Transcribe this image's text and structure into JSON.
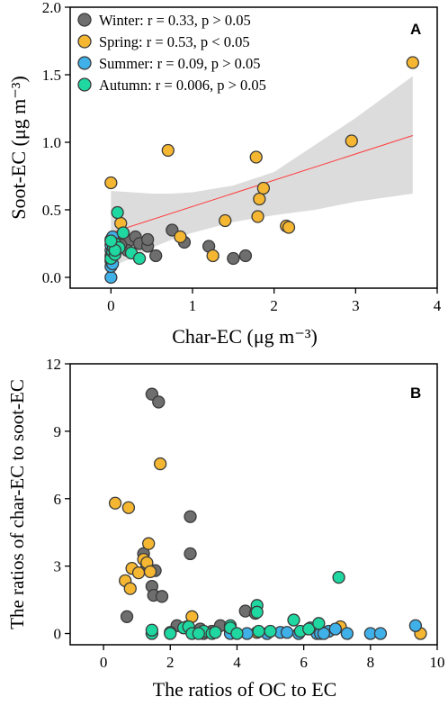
{
  "chart_data": [
    {
      "type": "scatter",
      "panel_label": "A",
      "xlabel": "Char-EC (μg m⁻³)",
      "ylabel": "Soot-EC (μg m⁻³)",
      "xlim": [
        -0.5,
        4
      ],
      "ylim": [
        -0.08,
        2.0
      ],
      "xticks": [
        "0",
        "1",
        "2",
        "3",
        "4"
      ],
      "yticks": [
        "0.0",
        "0.5",
        "1.0",
        "1.5",
        "2.0"
      ],
      "legend_position": "top-left",
      "regression_line": {
        "x": [
          0.0,
          3.7
        ],
        "y": [
          0.33,
          1.05
        ],
        "color": "#ff3b3b"
      },
      "confidence_band": {
        "x": [
          0.0,
          0.25,
          0.5,
          0.75,
          1.0,
          1.5,
          2.0,
          2.5,
          3.0,
          3.7
        ],
        "upper": [
          0.64,
          0.63,
          0.62,
          0.62,
          0.63,
          0.68,
          0.78,
          0.98,
          1.18,
          1.49
        ],
        "lower": [
          0.08,
          0.14,
          0.22,
          0.28,
          0.33,
          0.41,
          0.46,
          0.5,
          0.56,
          0.62
        ],
        "color": "#dcdcdc"
      },
      "series": [
        {
          "name": "Winter: r = 0.33, p > 0.05",
          "color": "#6e6e6e",
          "points": [
            [
              0.05,
              0.22
            ],
            [
              0.1,
              0.28
            ],
            [
              0.15,
              0.33
            ],
            [
              0.22,
              0.27
            ],
            [
              0.3,
              0.3
            ],
            [
              0.35,
              0.25
            ],
            [
              0.45,
              0.23
            ],
            [
              0.45,
              0.28
            ],
            [
              0.55,
              0.16
            ],
            [
              0.75,
              0.35
            ],
            [
              0.9,
              0.26
            ],
            [
              1.2,
              0.23
            ],
            [
              1.5,
              0.14
            ],
            [
              1.65,
              0.16
            ],
            [
              0.2,
              0.2
            ],
            [
              0.12,
              0.24
            ]
          ]
        },
        {
          "name": "Spring: r = 0.53, p < 0.05",
          "color": "#f5b731",
          "points": [
            [
              0.0,
              0.7
            ],
            [
              0.12,
              0.4
            ],
            [
              0.7,
              0.94
            ],
            [
              0.85,
              0.3
            ],
            [
              1.25,
              0.16
            ],
            [
              1.4,
              0.42
            ],
            [
              1.78,
              0.89
            ],
            [
              1.8,
              0.45
            ],
            [
              1.82,
              0.58
            ],
            [
              1.87,
              0.66
            ],
            [
              2.15,
              0.38
            ],
            [
              2.18,
              0.37
            ],
            [
              2.95,
              1.01
            ],
            [
              3.7,
              1.59
            ],
            [
              0.02,
              0.2
            ],
            [
              0.05,
              0.25
            ]
          ]
        },
        {
          "name": "Summer: r = 0.09, p > 0.05",
          "color": "#3fb0e8",
          "points": [
            [
              0.0,
              0.0
            ],
            [
              0.0,
              0.08
            ],
            [
              0.0,
              0.12
            ],
            [
              0.0,
              0.16
            ],
            [
              0.0,
              0.2
            ],
            [
              0.0,
              0.24
            ],
            [
              0.0,
              0.28
            ],
            [
              0.02,
              0.1
            ],
            [
              0.02,
              0.18
            ],
            [
              0.03,
              0.22
            ],
            [
              0.02,
              0.3
            ]
          ]
        },
        {
          "name": "Autumn: r = 0.006, p > 0.05",
          "color": "#1fd7a0",
          "points": [
            [
              0.0,
              0.14
            ],
            [
              0.02,
              0.19
            ],
            [
              0.03,
              0.22
            ],
            [
              0.05,
              0.25
            ],
            [
              0.05,
              0.17
            ],
            [
              0.08,
              0.48
            ],
            [
              0.1,
              0.22
            ],
            [
              0.15,
              0.33
            ],
            [
              0.25,
              0.18
            ],
            [
              0.35,
              0.14
            ],
            [
              0.05,
              0.2
            ],
            [
              0.0,
              0.27
            ]
          ]
        }
      ]
    },
    {
      "type": "scatter",
      "panel_label": "B",
      "xlabel": "The ratios of OC to EC",
      "ylabel": "The ratios of char-EC to soot-EC",
      "xlim": [
        -1,
        10
      ],
      "ylim": [
        -0.5,
        12
      ],
      "xticks": [
        "0",
        "2",
        "4",
        "6",
        "8",
        "10"
      ],
      "yticks": [
        "0",
        "3",
        "6",
        "9",
        "12"
      ],
      "series": [
        {
          "name": "Winter",
          "color": "#6e6e6e",
          "points": [
            [
              0.7,
              0.75
            ],
            [
              1.2,
              3.55
            ],
            [
              1.3,
              3.0
            ],
            [
              1.45,
              10.65
            ],
            [
              1.65,
              10.3
            ],
            [
              1.45,
              2.1
            ],
            [
              1.5,
              1.7
            ],
            [
              1.75,
              1.65
            ],
            [
              1.55,
              2.8
            ],
            [
              2.6,
              5.2
            ],
            [
              2.6,
              3.55
            ],
            [
              2.2,
              0.35
            ],
            [
              2.9,
              0.2
            ],
            [
              3.25,
              0.1
            ],
            [
              3.5,
              0.35
            ],
            [
              4.25,
              1.0
            ],
            [
              4.55,
              0.9
            ],
            [
              2.0,
              0.05
            ],
            [
              3.0,
              0.0
            ],
            [
              3.8,
              0.1
            ]
          ]
        },
        {
          "name": "Spring",
          "color": "#f5b731",
          "points": [
            [
              0.35,
              5.8
            ],
            [
              0.75,
              5.6
            ],
            [
              1.7,
              7.55
            ],
            [
              0.65,
              2.35
            ],
            [
              0.8,
              2.0
            ],
            [
              0.85,
              2.9
            ],
            [
              1.05,
              2.7
            ],
            [
              1.2,
              3.3
            ],
            [
              1.3,
              3.15
            ],
            [
              1.4,
              2.75
            ],
            [
              1.35,
              4.0
            ],
            [
              2.65,
              0.75
            ],
            [
              2.5,
              0.3
            ],
            [
              7.1,
              0.3
            ],
            [
              9.5,
              0.0
            ],
            [
              4.6,
              0.05
            ]
          ]
        },
        {
          "name": "Summer",
          "color": "#3fb0e8",
          "points": [
            [
              3.8,
              0.0
            ],
            [
              4.3,
              0.0
            ],
            [
              4.9,
              0.0
            ],
            [
              5.3,
              0.05
            ],
            [
              5.5,
              0.05
            ],
            [
              6.2,
              0.25
            ],
            [
              6.4,
              0.0
            ],
            [
              6.5,
              0.0
            ],
            [
              6.75,
              0.1
            ],
            [
              6.95,
              0.2
            ],
            [
              7.3,
              0.0
            ],
            [
              8.0,
              0.0
            ],
            [
              8.3,
              0.0
            ],
            [
              9.35,
              0.35
            ],
            [
              5.85,
              0.0
            ],
            [
              6.6,
              0.0
            ]
          ]
        },
        {
          "name": "Autumn",
          "color": "#1fd7a0",
          "points": [
            [
              1.45,
              0.0
            ],
            [
              1.45,
              0.15
            ],
            [
              2.0,
              0.0
            ],
            [
              2.4,
              0.25
            ],
            [
              2.55,
              0.3
            ],
            [
              2.65,
              0.0
            ],
            [
              3.0,
              0.1
            ],
            [
              3.25,
              0.0
            ],
            [
              3.35,
              0.05
            ],
            [
              3.8,
              0.35
            ],
            [
              3.8,
              0.25
            ],
            [
              4.6,
              1.25
            ],
            [
              4.6,
              0.95
            ],
            [
              4.65,
              0.1
            ],
            [
              5.0,
              0.1
            ],
            [
              5.7,
              0.6
            ],
            [
              5.9,
              0.1
            ],
            [
              6.15,
              0.2
            ],
            [
              6.45,
              0.45
            ],
            [
              7.05,
              2.5
            ],
            [
              2.85,
              0.0
            ],
            [
              4.0,
              0.0
            ]
          ]
        }
      ]
    }
  ]
}
